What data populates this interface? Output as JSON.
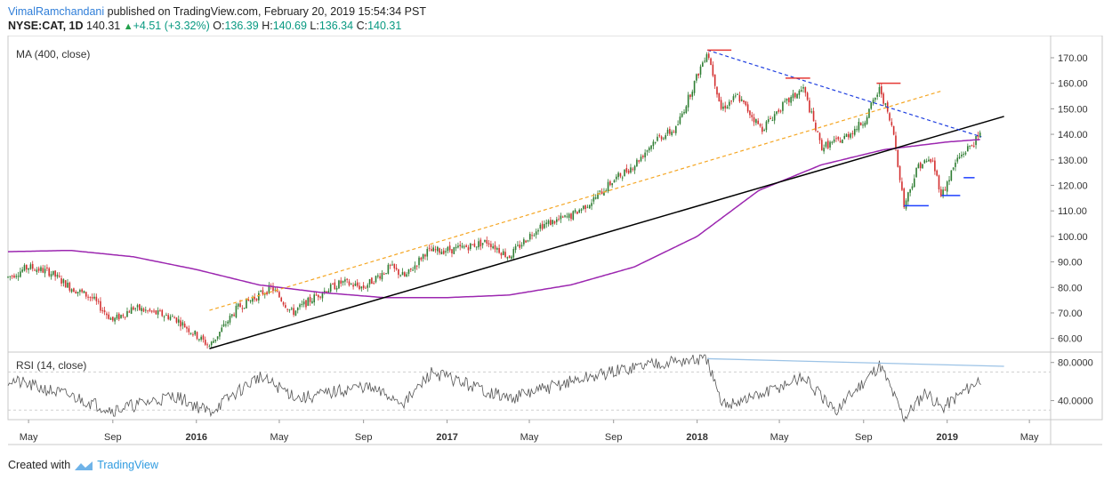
{
  "header": {
    "author": "VimalRamchandani",
    "published_text": " published on TradingView.com, February 20, 2019 15:54:34 PST"
  },
  "quote": {
    "symbol": "NYSE:CAT, 1D",
    "price": "140.31",
    "change": "+4.51 (+3.32%)",
    "open_label": "O:",
    "open": "136.39",
    "high_label": "H:",
    "high": "140.69",
    "low_label": "L:",
    "low": "136.34",
    "close_label": "C:",
    "close": "140.31"
  },
  "footer": {
    "created_with": "Created with",
    "brand": "TradingView"
  },
  "colors": {
    "candle_up": "#2e7d32",
    "candle_down": "#d32f2f",
    "ma": "#9c27b0",
    "trend_black": "#000000",
    "trend_orange": "#f5a623",
    "trend_blue": "#1f3fe0",
    "level_red": "#e53935",
    "level_blue": "#1e40ff",
    "rsi_line": "#555555",
    "rsi_divergence": "#9cc3e6"
  },
  "chart_data": [
    {
      "type": "candlestick",
      "title": "MA (400, close)",
      "ylim": [
        55,
        178
      ],
      "y_ticks": [
        "170.00",
        "160.00",
        "150.00",
        "140.00",
        "130.00",
        "120.00",
        "110.00",
        "100.00",
        "90.00",
        "80.00",
        "70.00",
        "60.00"
      ],
      "x_ticks": [
        "May",
        "Sep",
        "2016",
        "May",
        "Sep",
        "2017",
        "May",
        "Sep",
        "2018",
        "May",
        "Sep",
        "2019",
        "May"
      ],
      "x_ticks_bold": [
        "2016",
        "2017",
        "2018",
        "2019"
      ],
      "time_range": [
        "2015-04",
        "2019-06"
      ],
      "price_path": [
        {
          "t": "2015-04-01",
          "v": 84
        },
        {
          "t": "2015-05-01",
          "v": 88
        },
        {
          "t": "2015-06-01",
          "v": 86
        },
        {
          "t": "2015-07-01",
          "v": 80
        },
        {
          "t": "2015-08-01",
          "v": 76
        },
        {
          "t": "2015-09-01",
          "v": 67
        },
        {
          "t": "2015-10-01",
          "v": 72
        },
        {
          "t": "2015-11-01",
          "v": 70
        },
        {
          "t": "2015-12-01",
          "v": 68
        },
        {
          "t": "2016-01-20",
          "v": 57
        },
        {
          "t": "2016-03-01",
          "v": 72
        },
        {
          "t": "2016-04-20",
          "v": 80
        },
        {
          "t": "2016-05-20",
          "v": 70
        },
        {
          "t": "2016-07-01",
          "v": 78
        },
        {
          "t": "2016-08-01",
          "v": 82
        },
        {
          "t": "2016-09-01",
          "v": 80
        },
        {
          "t": "2016-10-10",
          "v": 88
        },
        {
          "t": "2016-11-01",
          "v": 84
        },
        {
          "t": "2016-12-01",
          "v": 94
        },
        {
          "t": "2017-01-15",
          "v": 95
        },
        {
          "t": "2017-03-01",
          "v": 98
        },
        {
          "t": "2017-04-01",
          "v": 92
        },
        {
          "t": "2017-05-15",
          "v": 104
        },
        {
          "t": "2017-07-01",
          "v": 108
        },
        {
          "t": "2017-08-01",
          "v": 114
        },
        {
          "t": "2017-09-01",
          "v": 122
        },
        {
          "t": "2017-10-01",
          "v": 128
        },
        {
          "t": "2017-11-01",
          "v": 138
        },
        {
          "t": "2017-12-01",
          "v": 142
        },
        {
          "t": "2018-01-16",
          "v": 173
        },
        {
          "t": "2018-02-05",
          "v": 150
        },
        {
          "t": "2018-03-01",
          "v": 155
        },
        {
          "t": "2018-04-05",
          "v": 142
        },
        {
          "t": "2018-05-01",
          "v": 150
        },
        {
          "t": "2018-06-05",
          "v": 158
        },
        {
          "t": "2018-07-01",
          "v": 135
        },
        {
          "t": "2018-08-01",
          "v": 138
        },
        {
          "t": "2018-09-01",
          "v": 145
        },
        {
          "t": "2018-09-25",
          "v": 158
        },
        {
          "t": "2018-10-15",
          "v": 140
        },
        {
          "t": "2018-10-30",
          "v": 112
        },
        {
          "t": "2018-11-20",
          "v": 128
        },
        {
          "t": "2018-12-10",
          "v": 130
        },
        {
          "t": "2018-12-24",
          "v": 116
        },
        {
          "t": "2019-01-15",
          "v": 130
        },
        {
          "t": "2019-02-20",
          "v": 140
        }
      ],
      "ma_400": [
        {
          "t": "2015-04-01",
          "v": 94
        },
        {
          "t": "2015-07-01",
          "v": 94.5
        },
        {
          "t": "2015-10-01",
          "v": 92
        },
        {
          "t": "2016-01-01",
          "v": 87
        },
        {
          "t": "2016-04-01",
          "v": 81
        },
        {
          "t": "2016-07-01",
          "v": 78
        },
        {
          "t": "2016-10-01",
          "v": 76
        },
        {
          "t": "2017-01-01",
          "v": 76
        },
        {
          "t": "2017-04-01",
          "v": 77
        },
        {
          "t": "2017-07-01",
          "v": 81
        },
        {
          "t": "2017-10-01",
          "v": 88
        },
        {
          "t": "2018-01-01",
          "v": 100
        },
        {
          "t": "2018-04-01",
          "v": 118
        },
        {
          "t": "2018-07-01",
          "v": 128
        },
        {
          "t": "2018-10-01",
          "v": 134
        },
        {
          "t": "2019-01-01",
          "v": 137
        },
        {
          "t": "2019-02-20",
          "v": 138
        }
      ],
      "trendlines": [
        {
          "style": "solid",
          "color": "trend_black",
          "from": {
            "t": "2016-01-20",
            "v": 56
          },
          "to": {
            "t": "2019-03-25",
            "v": 147
          }
        },
        {
          "style": "dashed",
          "color": "trend_orange",
          "from": {
            "t": "2016-01-20",
            "v": 71
          },
          "to": {
            "t": "2018-12-24",
            "v": 157
          }
        },
        {
          "style": "dashed",
          "color": "trend_blue",
          "from": {
            "t": "2018-01-16",
            "v": 173
          },
          "to": {
            "t": "2019-02-20",
            "v": 139
          }
        }
      ],
      "levels": [
        {
          "color": "level_red",
          "t1": "2018-01-16",
          "t2": "2018-02-20",
          "v": 173
        },
        {
          "color": "level_red",
          "t1": "2018-05-10",
          "t2": "2018-06-15",
          "v": 162
        },
        {
          "color": "level_red",
          "t1": "2018-09-20",
          "t2": "2018-10-25",
          "v": 160
        },
        {
          "color": "level_blue",
          "t1": "2018-10-30",
          "t2": "2018-12-05",
          "v": 112
        },
        {
          "color": "level_blue",
          "t1": "2018-12-24",
          "t2": "2019-01-20",
          "v": 116
        },
        {
          "color": "level_blue",
          "t1": "2019-01-25",
          "t2": "2019-02-10",
          "v": 123
        }
      ]
    },
    {
      "type": "line",
      "title": "RSI (14, close)",
      "ylim": [
        20,
        90
      ],
      "y_ticks": [
        "80.0000",
        "40.0000"
      ],
      "bands": [
        70,
        30
      ],
      "rsi_path": [
        {
          "t": "2015-04-01",
          "v": 62
        },
        {
          "t": "2015-07-01",
          "v": 45
        },
        {
          "t": "2015-09-01",
          "v": 30
        },
        {
          "t": "2015-12-01",
          "v": 45
        },
        {
          "t": "2016-01-20",
          "v": 28
        },
        {
          "t": "2016-04-01",
          "v": 65
        },
        {
          "t": "2016-06-01",
          "v": 42
        },
        {
          "t": "2016-09-01",
          "v": 55
        },
        {
          "t": "2016-11-01",
          "v": 38
        },
        {
          "t": "2016-12-10",
          "v": 70
        },
        {
          "t": "2017-04-01",
          "v": 42
        },
        {
          "t": "2017-07-01",
          "v": 60
        },
        {
          "t": "2017-11-01",
          "v": 80
        },
        {
          "t": "2018-01-16",
          "v": 83
        },
        {
          "t": "2018-02-05",
          "v": 35
        },
        {
          "t": "2018-04-01",
          "v": 45
        },
        {
          "t": "2018-06-05",
          "v": 65
        },
        {
          "t": "2018-07-20",
          "v": 28
        },
        {
          "t": "2018-09-25",
          "v": 78
        },
        {
          "t": "2018-10-30",
          "v": 22
        },
        {
          "t": "2018-12-01",
          "v": 50
        },
        {
          "t": "2018-12-24",
          "v": 32
        },
        {
          "t": "2019-02-20",
          "v": 64
        }
      ],
      "divergence_line": {
        "from": {
          "t": "2018-01-16",
          "v": 84
        },
        "to": {
          "t": "2019-03-25",
          "v": 76
        }
      }
    }
  ]
}
